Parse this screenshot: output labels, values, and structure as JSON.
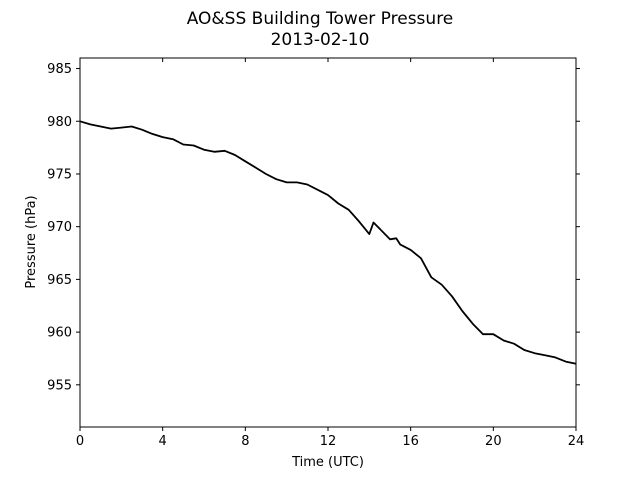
{
  "chart_data": {
    "type": "line",
    "title": "AO&SS Building Tower Pressure",
    "subtitle": "2013-02-10",
    "xlabel": "Time (UTC)",
    "ylabel": "Pressure (hPa)",
    "xlim": [
      0,
      24
    ],
    "ylim": [
      951,
      986
    ],
    "xticks": [
      0,
      4,
      8,
      12,
      16,
      20,
      24
    ],
    "yticks": [
      955,
      960,
      965,
      970,
      975,
      980,
      985
    ],
    "grid": false,
    "legend": "none",
    "line_color": "#000000",
    "series": [
      {
        "x": [
          0,
          0.5,
          1,
          1.5,
          2,
          2.5,
          3,
          3.5,
          4,
          4.5,
          5,
          5.5,
          6,
          6.5,
          7,
          7.5,
          8,
          8.5,
          9,
          9.5,
          10,
          10.5,
          11,
          11.5,
          12,
          12.5,
          13,
          13.5,
          14,
          14.2,
          14.5,
          15,
          15.3,
          15.5,
          16,
          16.5,
          17,
          17.5,
          18,
          18.5,
          19,
          19.5,
          20,
          20.5,
          21,
          21.5,
          22,
          22.5,
          23,
          23.5,
          24
        ],
        "y": [
          980.0,
          979.7,
          979.5,
          979.3,
          979.4,
          979.5,
          979.2,
          978.8,
          978.5,
          978.3,
          977.8,
          977.7,
          977.3,
          977.1,
          977.2,
          976.8,
          976.2,
          975.6,
          975.0,
          974.5,
          974.2,
          974.2,
          974.0,
          973.5,
          973.0,
          972.2,
          971.6,
          970.5,
          969.3,
          970.4,
          969.8,
          968.8,
          968.9,
          968.3,
          967.8,
          967.0,
          965.2,
          964.5,
          963.4,
          962.0,
          960.8,
          959.8,
          959.8,
          959.2,
          958.9,
          958.3,
          958.0,
          957.8,
          957.6,
          957.2,
          957.0
        ]
      }
    ]
  }
}
